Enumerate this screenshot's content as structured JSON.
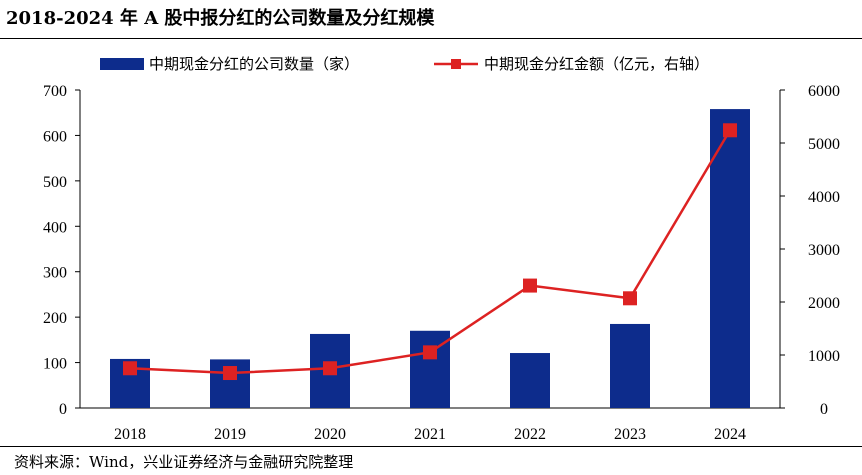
{
  "title": "2018-2024 年 A 股中报分红的公司数量及分红规模",
  "source": "资料来源：Wind，兴业证券经济与金融研究院整理",
  "colors": {
    "bar": "#0d2c8c",
    "line": "#dd2222"
  },
  "chart_data": {
    "type": "bar",
    "categories": [
      "2018",
      "2019",
      "2020",
      "2021",
      "2022",
      "2023",
      "2024"
    ],
    "series": [
      {
        "name": "中期现金分红的公司数量（家）",
        "type": "bar",
        "axis": "left",
        "values": [
          108,
          107,
          163,
          170,
          121,
          185,
          658
        ]
      },
      {
        "name": "中期现金分红金额（亿元，右轴）",
        "type": "line",
        "axis": "right",
        "values": [
          750,
          660,
          750,
          1050,
          2310,
          2070,
          5240
        ]
      }
    ],
    "ylim_left": [
      0,
      700
    ],
    "yticks_left": [
      "0",
      "100",
      "200",
      "300",
      "400",
      "500",
      "600",
      "700"
    ],
    "ylim_right": [
      0,
      6000
    ],
    "yticks_right": [
      "0",
      "1000",
      "2000",
      "3000",
      "4000",
      "5000",
      "6000"
    ],
    "grid": false,
    "legend_position": "top"
  }
}
